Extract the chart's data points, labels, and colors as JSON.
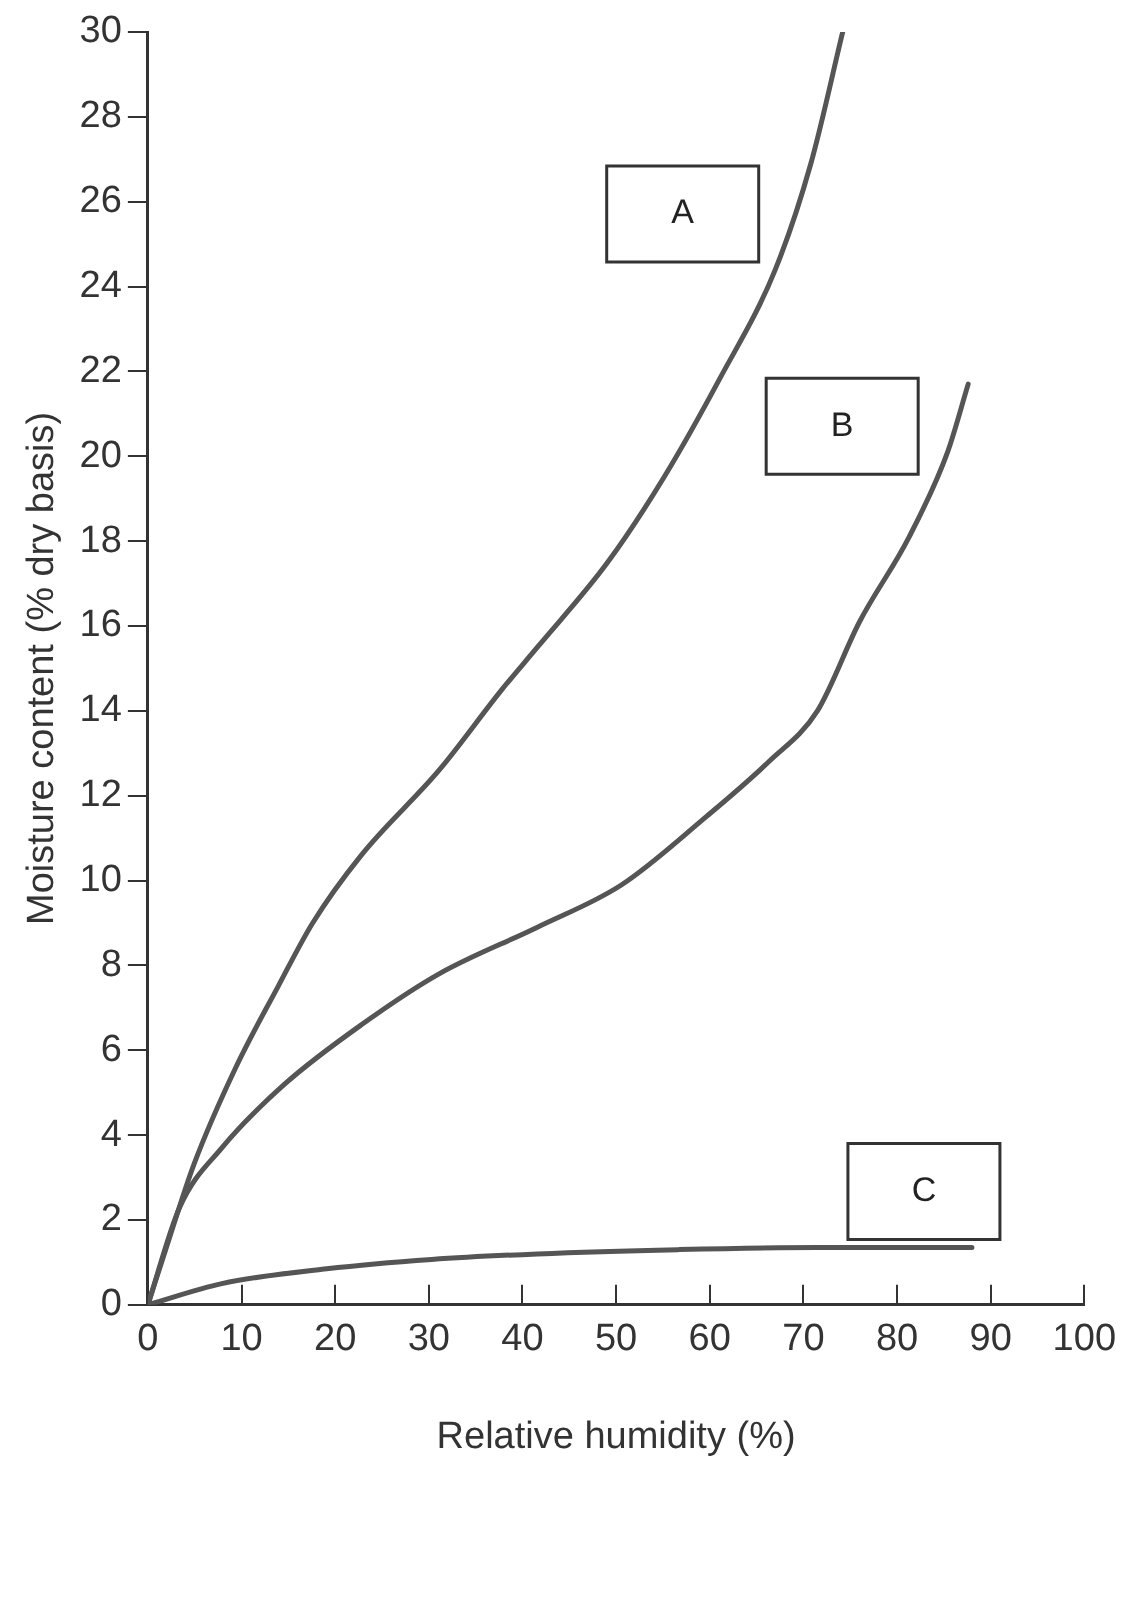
{
  "chart_data": {
    "type": "line",
    "xlabel": "Relative humidity (%)",
    "ylabel": "Moisture content (% dry basis)",
    "xlim": [
      0,
      100
    ],
    "xticks": [
      0,
      10,
      20,
      30,
      40,
      50,
      60,
      70,
      80,
      90,
      100
    ],
    "ylim": [
      0,
      30
    ],
    "yticks": [
      0,
      2,
      4,
      6,
      8,
      10,
      12,
      14,
      16,
      18,
      20,
      22,
      24,
      26,
      28,
      30
    ],
    "grid": false,
    "legend": false,
    "marker": "none",
    "line_style": "solid",
    "series": [
      {
        "name": "A",
        "color": "#555555",
        "x": [
          0,
          1.9,
          4.9,
          9.4,
          13.9,
          17.6,
          22.8,
          31.1,
          37.8,
          41.6,
          49.1,
          55.1,
          61.0,
          67.0,
          70.8,
          74.2
        ],
        "values": [
          0,
          1.3,
          3.3,
          5.6,
          7.5,
          9.0,
          10.6,
          12.6,
          14.5,
          15.5,
          17.5,
          19.5,
          21.8,
          24.4,
          26.9,
          30
        ]
      },
      {
        "name": "B",
        "color": "#555555",
        "x": [
          0,
          3.4,
          7.9,
          14.6,
          22.8,
          31.1,
          41.6,
          50.6,
          59.6,
          66.3,
          71.5,
          76.0,
          81.3,
          85.4,
          87.6
        ],
        "values": [
          0,
          2.3,
          3.7,
          5.2,
          6.6,
          7.8,
          8.9,
          9.9,
          11.5,
          12.8,
          14.0,
          16.1,
          18.1,
          20.1,
          21.7
        ]
      },
      {
        "name": "C",
        "color": "#555555",
        "x": [
          0,
          7.9,
          19.1,
          30.3,
          41.6,
          56.6,
          71.5,
          88
        ],
        "values": [
          0,
          0.5,
          0.85,
          1.07,
          1.2,
          1.3,
          1.35,
          1.35
        ]
      }
    ]
  }
}
